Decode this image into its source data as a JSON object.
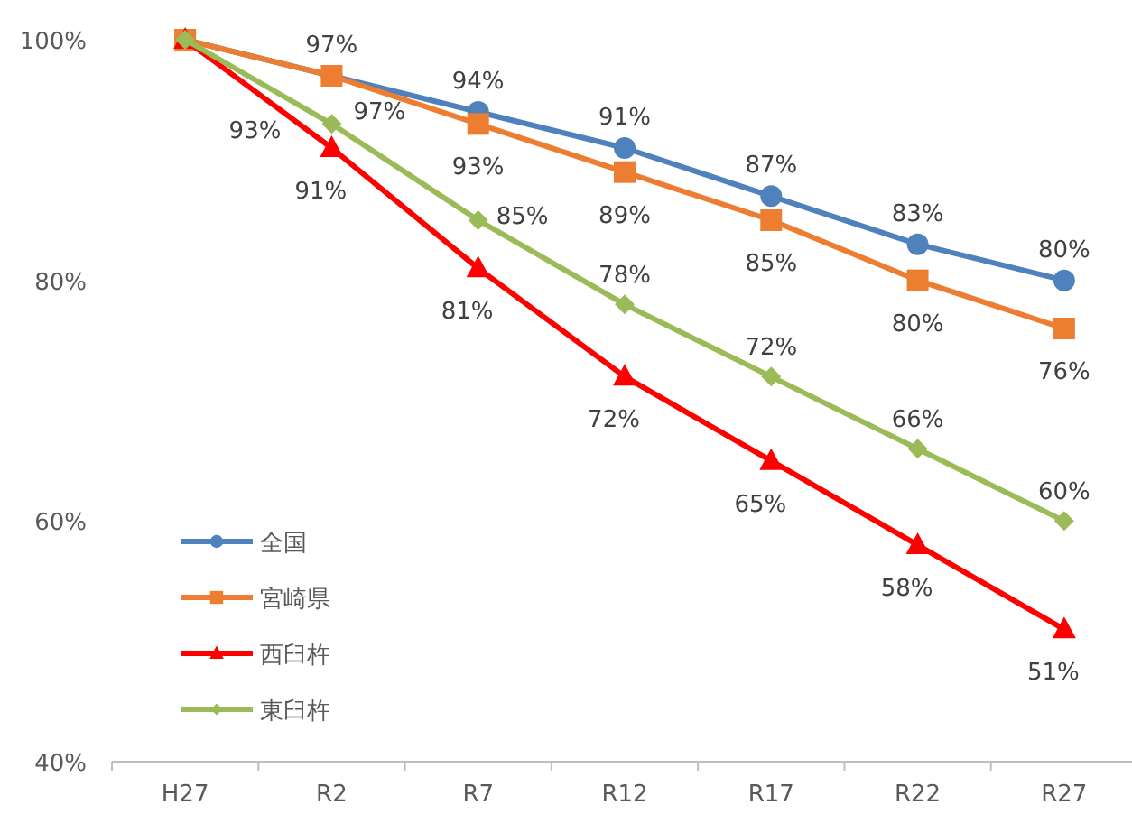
{
  "chart_data": {
    "type": "line",
    "categories": [
      "H27",
      "R2",
      "R7",
      "R12",
      "R17",
      "R22",
      "R27"
    ],
    "series": [
      {
        "name": "全国",
        "color": "#4f81bd",
        "marker": "circle",
        "values": [
          100,
          97,
          94,
          91,
          87,
          83,
          80
        ],
        "value_labels": [
          null,
          "97%",
          "94%",
          "91%",
          "87%",
          "83%",
          "80%"
        ]
      },
      {
        "name": "宮崎県",
        "color": "#ed7d31",
        "marker": "square",
        "values": [
          100,
          97,
          93,
          89,
          85,
          80,
          76
        ],
        "value_labels": [
          null,
          "97%",
          "93%",
          "89%",
          "85%",
          "80%",
          "76%"
        ]
      },
      {
        "name": "西臼杵",
        "color": "#ff0000",
        "marker": "triangle",
        "values": [
          100,
          91,
          81,
          72,
          65,
          58,
          51
        ],
        "value_labels": [
          null,
          "91%",
          "81%",
          "72%",
          "65%",
          "58%",
          "51%"
        ]
      },
      {
        "name": "東臼杵",
        "color": "#9bbb59",
        "marker": "diamond",
        "values": [
          100,
          93,
          85,
          78,
          72,
          66,
          60
        ],
        "value_labels": [
          null,
          "93%",
          "85%",
          "78%",
          "72%",
          "66%",
          "60%"
        ]
      }
    ],
    "ylim": [
      40,
      100
    ],
    "yticks": [
      {
        "value": 40,
        "label": "40%"
      },
      {
        "value": 60,
        "label": "60%"
      },
      {
        "value": 80,
        "label": "80%"
      },
      {
        "value": 100,
        "label": "100%"
      }
    ],
    "grid": false,
    "legend": "bottom left",
    "line_style": "solid"
  }
}
